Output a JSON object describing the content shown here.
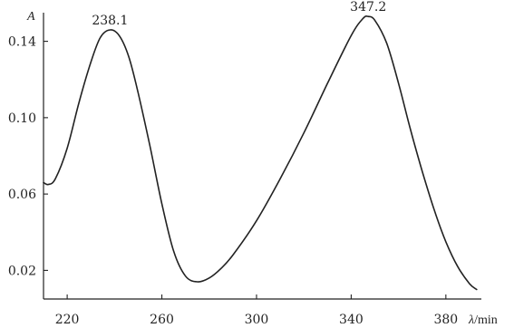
{
  "chart_data": {
    "type": "line",
    "xlabel_main": "λ",
    "xlabel_unit": "/min",
    "ylabel": "A",
    "xlim": [
      210,
      395
    ],
    "ylim": [
      0.005,
      0.155
    ],
    "xticks": [
      220,
      260,
      300,
      340,
      380
    ],
    "xtick_labels": [
      "220",
      "260",
      "300",
      "340",
      "380"
    ],
    "yticks": [
      0.02,
      0.06,
      0.1,
      0.14
    ],
    "ytick_labels": [
      "0.02",
      "0.06",
      "0.10",
      "0.14"
    ],
    "grid": false,
    "series": [
      {
        "x": [
          210,
          212,
          215,
          220,
          225,
          230,
          234,
          238.1,
          242,
          246,
          250,
          255,
          260,
          265,
          270,
          275,
          280,
          285,
          290,
          300,
          310,
          320,
          330,
          340,
          345,
          347.2,
          350,
          355,
          360,
          365,
          370,
          375,
          380,
          385,
          390,
          393
        ],
        "y": [
          0.066,
          0.065,
          0.068,
          0.084,
          0.108,
          0.129,
          0.142,
          0.146,
          0.143,
          0.132,
          0.113,
          0.085,
          0.055,
          0.03,
          0.017,
          0.014,
          0.016,
          0.021,
          0.028,
          0.046,
          0.068,
          0.092,
          0.118,
          0.143,
          0.152,
          0.153,
          0.151,
          0.139,
          0.118,
          0.094,
          0.072,
          0.052,
          0.035,
          0.022,
          0.013,
          0.01
        ]
      }
    ],
    "annotations": [
      {
        "label": "238.1",
        "x": 238.1,
        "y": 0.146
      },
      {
        "label": "347.2",
        "x": 347.2,
        "y": 0.153
      }
    ]
  }
}
